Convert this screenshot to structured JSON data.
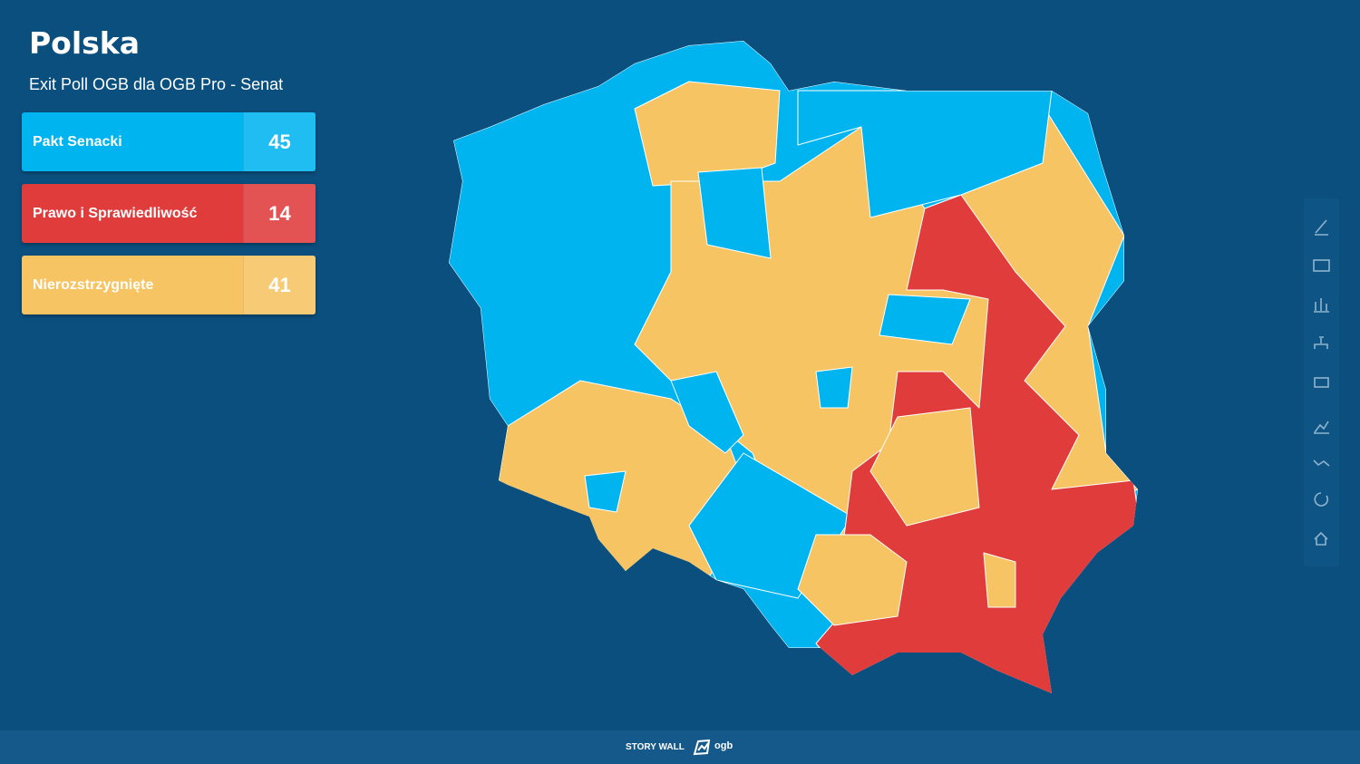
{
  "header": {
    "title": "Polska",
    "subtitle": "Exit Poll OGB dla OGB Pro - Senat"
  },
  "legend": {
    "items": [
      {
        "name": "Pakt Senacki",
        "value": "45",
        "color": "#00b4ef"
      },
      {
        "name": "Prawo i Sprawiedliwość",
        "value": "14",
        "color": "#e03c3c"
      },
      {
        "name": "Nierozstrzygnięte",
        "value": "41",
        "color": "#f6c462"
      }
    ]
  },
  "footer": {
    "label": "STORY WALL",
    "logo": "ogb"
  }
}
